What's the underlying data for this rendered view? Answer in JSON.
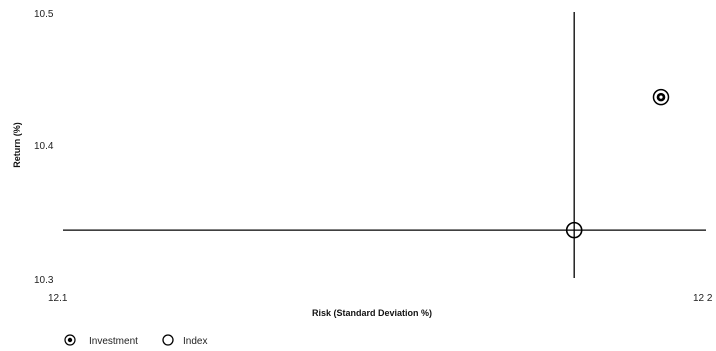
{
  "chart_data": {
    "type": "scatter",
    "xlabel": "Risk (Standard Deviation %)",
    "ylabel": "Return (%)",
    "xlim": [
      12.1,
      12.2
    ],
    "ylim": [
      10.3,
      10.5
    ],
    "x_tick_labels": [
      "12.1",
      "12 2"
    ],
    "y_tick_labels": [
      "10.5",
      "10.4",
      "10.3"
    ],
    "series": [
      {
        "name": "Investment",
        "marker": "circled-dot",
        "points": [
          {
            "x": 12.193,
            "y": 10.436
          }
        ]
      },
      {
        "name": "Index",
        "marker": "open-circle",
        "points": [
          {
            "x": 12.1795,
            "y": 10.336
          }
        ]
      }
    ],
    "reference_lines": {
      "horizontal_y": 10.336,
      "vertical_x": 12.1795
    },
    "grid": false,
    "legend_position": "bottom-left",
    "colors": {
      "line": "#000000",
      "marker": "#000000"
    }
  }
}
